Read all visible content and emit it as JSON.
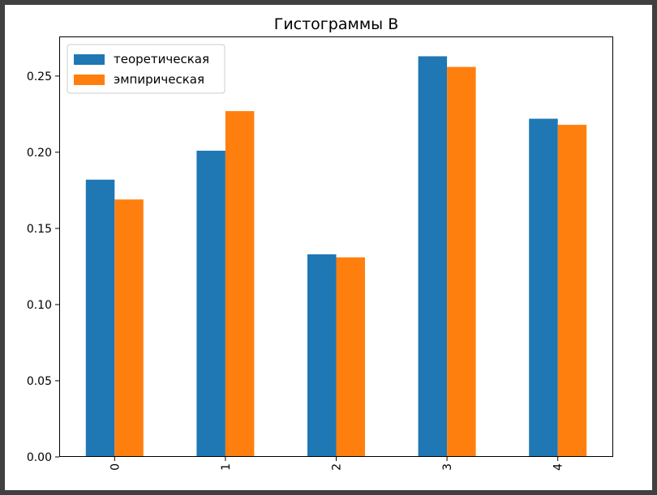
{
  "chart_data": {
    "type": "bar",
    "title": "Гистограммы B",
    "xlabel": "",
    "ylabel": "",
    "categories": [
      "0",
      "1",
      "2",
      "3",
      "4"
    ],
    "series": [
      {
        "name": "теоретическая",
        "color": "#1f77b4",
        "values": [
          0.182,
          0.201,
          0.133,
          0.263,
          0.222
        ]
      },
      {
        "name": "эмпирическая",
        "color": "#ff7f0e",
        "values": [
          0.169,
          0.227,
          0.131,
          0.256,
          0.218
        ]
      }
    ],
    "ylim": [
      0,
      0.276
    ],
    "yticks": [
      "0.00",
      "0.05",
      "0.10",
      "0.15",
      "0.20",
      "0.25"
    ],
    "xtick_rotation": "vertical",
    "grid": false,
    "legend_position": "upper-left"
  }
}
